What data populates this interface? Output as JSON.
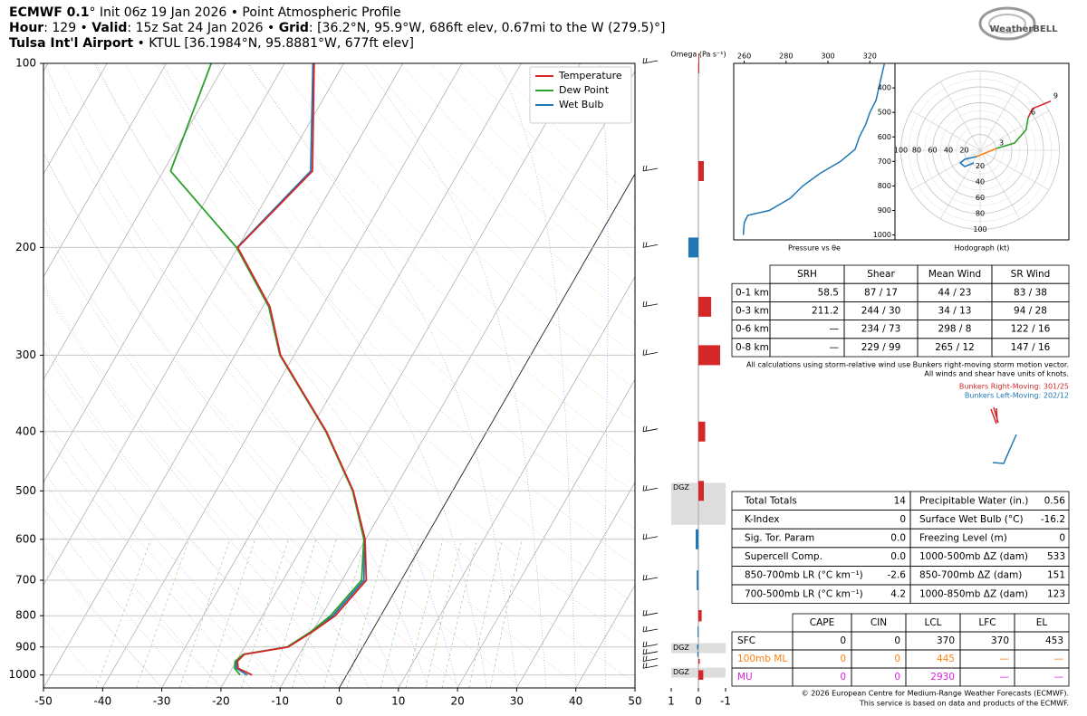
{
  "header": {
    "lines": [
      [
        {
          "text": "ECMWF 0.1",
          "bold": true
        },
        {
          "text": "° Init 06z 19 Jan 2026 • Point Atmospheric Profile",
          "bold": false
        }
      ],
      [
        {
          "text": "Hour",
          "bold": true
        },
        {
          "text": ": 129 • ",
          "bold": false
        },
        {
          "text": "Valid",
          "bold": true
        },
        {
          "text": ": 15z Sat 24 Jan 2026 • ",
          "bold": false
        },
        {
          "text": "Grid",
          "bold": true
        },
        {
          "text": ": [36.2°N, 95.9°W, 686ft elev, 0.67mi to the W (279.5)°]",
          "bold": false
        }
      ],
      [
        {
          "text": "Tulsa Int'l Airport",
          "bold": true
        },
        {
          "text": " • KTUL [36.1984°N, 95.8881°W, 677ft elev]",
          "bold": false
        }
      ]
    ]
  },
  "logo": "WeatherBELL",
  "chart_data": [
    {
      "type": "skewt",
      "levels": [
        1000,
        975,
        950,
        925,
        900,
        850,
        800,
        700,
        600,
        500,
        400,
        300,
        250,
        200,
        150,
        100
      ],
      "series": [
        {
          "name": "Temperature",
          "color": "#d62728",
          "values": [
            -16,
            -19,
            -19.8,
            -19.3,
            -12.6,
            -10,
            -7.7,
            -5.9,
            -10.1,
            -16.8,
            -27.1,
            -42.3,
            -48.8,
            -60,
            -54.8,
            -65
          ]
        },
        {
          "name": "Dew Point",
          "color": "#2ca02c",
          "values": [
            -18,
            -19.6,
            -20.2,
            -19.5,
            -12.8,
            -10.3,
            -8.5,
            -6.7,
            -10.3,
            -16.9,
            -27.2,
            -42.4,
            -49,
            -60.2,
            -78.8,
            -82.4
          ]
        },
        {
          "name": "Wet Bulb",
          "color": "#1f77b4",
          "values": [
            -16.8,
            -19.3,
            -20,
            -19.4,
            -12.7,
            -10.1,
            -8.1,
            -6.3,
            -10.2,
            -16.85,
            -27.15,
            -42.35,
            -48.9,
            -60.1,
            -55.1,
            -65.2
          ]
        }
      ],
      "xlim": [
        -50,
        50
      ],
      "xticks": [
        -50,
        -40,
        -30,
        -20,
        -10,
        0,
        10,
        20,
        30,
        40,
        50
      ],
      "ylim": [
        1050,
        100
      ],
      "yticks": [
        100,
        200,
        300,
        400,
        500,
        600,
        700,
        800,
        900,
        1000
      ],
      "log_y": true,
      "grid": true,
      "legend": "upper right"
    },
    {
      "type": "omega",
      "title": "Omega (Pa s⁻¹)",
      "levels": [
        1000,
        950,
        925,
        900,
        850,
        800,
        700,
        600,
        500,
        400,
        300,
        250,
        200,
        150,
        100
      ],
      "values": [
        -0.18,
        -0.05,
        0.04,
        0.05,
        0.03,
        -0.12,
        0.06,
        0.1,
        -0.2,
        -0.25,
        -0.8,
        -0.47,
        0.37,
        -0.2,
        -0.02
      ],
      "positive_color": "#1f77b4",
      "negative_color": "#d62728",
      "xlim": [
        1,
        -1
      ],
      "xticks": [
        1,
        0,
        -1
      ],
      "ylim": [
        1050,
        100
      ],
      "log_y": true,
      "dgz": [
        {
          "label": "DGZ",
          "p": [
            485,
            568
          ]
        },
        {
          "label": "DGZ",
          "p": [
            887,
            921
          ]
        },
        {
          "label": "DGZ",
          "p": [
            973,
            1010
          ]
        }
      ]
    },
    {
      "type": "line",
      "xlabel": "Pressure vs θe",
      "levels": [
        1000,
        950,
        920,
        900,
        850,
        800,
        750,
        700,
        650,
        600,
        550,
        500,
        450,
        400,
        300
      ],
      "series": [
        {
          "color": "#1f77b4",
          "values": [
            259.6,
            260,
            261.7,
            272,
            282,
            288,
            296,
            306,
            313,
            315,
            318,
            320,
            323,
            324.3,
            327
          ]
        }
      ],
      "xlim": [
        255,
        332
      ],
      "xticks": [
        260,
        280,
        300,
        320
      ],
      "ylim": [
        1020,
        300
      ],
      "yticks": [
        400,
        500,
        600,
        700,
        800,
        900,
        1000
      ]
    },
    {
      "type": "hodograph",
      "xlabel": "Hodograph (kt)",
      "rlim": 100,
      "rticks": [
        20,
        40,
        60,
        80,
        100
      ],
      "series": [
        {
          "color": "#1f77b4",
          "u": [
            -8,
            -19.4,
            -25,
            -19.4,
            -4.6
          ],
          "v": [
            -16,
            -20.6,
            -16,
            -11.4,
            -8
          ]
        },
        {
          "color": "#ff7f0e",
          "u": [
            -4.6,
            20.6
          ],
          "v": [
            -8,
            2.3
          ]
        },
        {
          "color": "#2ca02c",
          "u": [
            20.6,
            43.4,
            58,
            60.6
          ],
          "v": [
            2.3,
            9.1,
            26,
            41
          ]
        },
        {
          "color": "#d62728",
          "u": [
            60.6,
            66,
            89
          ],
          "v": [
            41,
            52.6,
            62
          ]
        }
      ],
      "markers": [
        {
          "label": "3",
          "u": 20.6,
          "v": 2.3
        },
        {
          "label": "6",
          "u": 60.6,
          "v": 41
        },
        {
          "label": "9",
          "u": 89,
          "v": 62
        }
      ]
    }
  ],
  "srh_table": {
    "header": [
      "SRH",
      "Shear",
      "Mean Wind",
      "SR Wind"
    ],
    "rows": [
      [
        "0-1 km",
        "58.5",
        "87 / 17",
        "44 / 23",
        "83 / 38"
      ],
      [
        "0-3 km",
        "211.2",
        "244 / 30",
        "34 / 13",
        "94 / 28"
      ],
      [
        "0-6 km",
        "—",
        "234 / 73",
        "298 / 8",
        "122 / 16"
      ],
      [
        "0-8 km",
        "—",
        "229 / 99",
        "265 / 12",
        "147 / 16"
      ]
    ]
  },
  "notes": [
    "All calculations using storm-relative wind use Bunkers right-moving storm motion vector.",
    "All winds and shear have units of knots."
  ],
  "bunkers": [
    {
      "text": "Bunkers Right-Moving: 301/25",
      "color": "#d62728"
    },
    {
      "text": "Bunkers Left-Moving: 202/12",
      "color": "#1f77b4"
    }
  ],
  "indices_table": {
    "rows": [
      [
        "Total Totals",
        "14",
        "Precipitable Water (in.)",
        "0.56"
      ],
      [
        "K-Index",
        "0",
        "Surface Wet Bulb (°C)",
        "-16.2"
      ],
      [
        "Sig. Tor. Param",
        "0.0",
        "Freezing Level (m)",
        "0"
      ],
      [
        "Supercell Comp.",
        "0.0",
        "1000-500mb ΔZ (dam)",
        "533"
      ],
      [
        "850-700mb LR (°C km⁻¹)",
        "-2.6",
        "850-700mb ΔZ (dam)",
        "151"
      ],
      [
        "700-500mb LR (°C km⁻¹)",
        "4.2",
        "1000-850mb ΔZ (dam)",
        "123"
      ]
    ]
  },
  "parcel_table": {
    "header": [
      "CAPE",
      "CIN",
      "LCL",
      "LFC",
      "EL"
    ],
    "rows": [
      {
        "label": "SFC",
        "color": "#000000",
        "values": [
          "0",
          "0",
          "370",
          "370",
          "453"
        ]
      },
      {
        "label": "100mb ML",
        "color": "#ff7f0e",
        "values": [
          "0",
          "0",
          "445",
          "—",
          "—"
        ]
      },
      {
        "label": "MU",
        "color": "#e020e0",
        "values": [
          "0",
          "0",
          "2930",
          "—",
          "—"
        ]
      }
    ]
  },
  "footer": [
    "© 2026 European Centre for Medium-Range Weather Forecasts (ECMWF).",
    "This service is based on data and products of the ECMWF."
  ]
}
